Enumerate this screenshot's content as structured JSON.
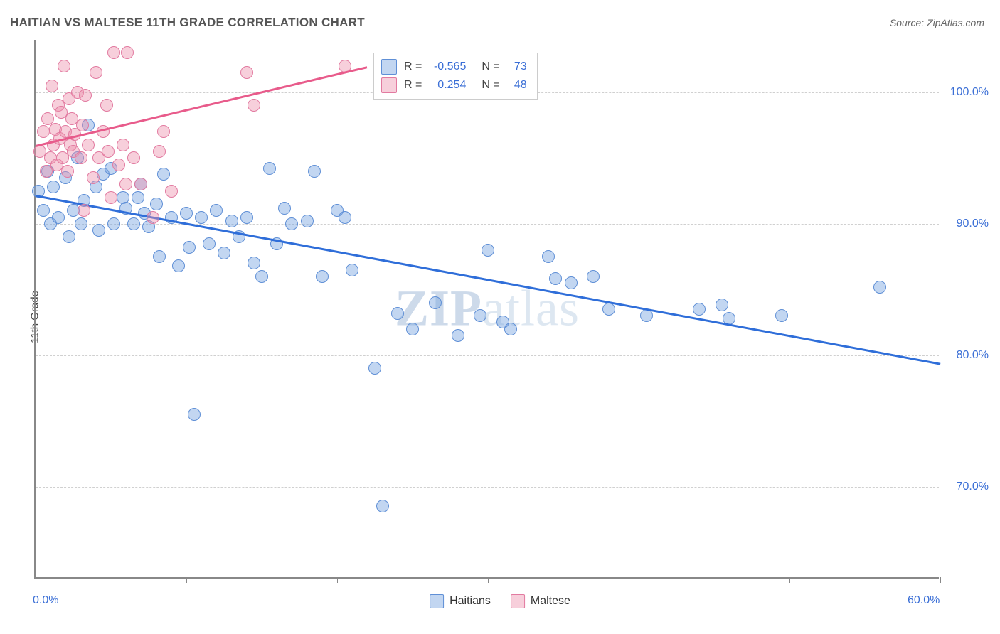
{
  "title": "HAITIAN VS MALTESE 11TH GRADE CORRELATION CHART",
  "source": "Source: ZipAtlas.com",
  "ylabel": "11th Grade",
  "watermark_pre": "ZIP",
  "watermark_post": "atlas",
  "chart": {
    "type": "scatter",
    "xlim": [
      0,
      60
    ],
    "ylim": [
      63,
      104
    ],
    "x_ticks": [
      0,
      10,
      20,
      30,
      40,
      50,
      60
    ],
    "x_tick_labels": {
      "0": "0.0%",
      "60": "60.0%"
    },
    "y_ticks": [
      70,
      80,
      90,
      100
    ],
    "y_tick_labels": [
      "70.0%",
      "80.0%",
      "90.0%",
      "100.0%"
    ],
    "grid_color": "#d0d0d0",
    "background_color": "#ffffff",
    "axis_color": "#888888",
    "label_color": "#3b6fd6",
    "point_radius": 9,
    "series": [
      {
        "name": "Haitians",
        "fill": "rgba(120,165,225,0.45)",
        "stroke": "#5f8fd6",
        "trend_color": "#2f6ed9",
        "trend": {
          "x1": 0,
          "y1": 92.2,
          "x2": 60,
          "y2": 79.4
        },
        "data": [
          [
            0.2,
            92.5
          ],
          [
            0.5,
            91.0
          ],
          [
            0.8,
            94.0
          ],
          [
            1.0,
            90.0
          ],
          [
            1.2,
            92.8
          ],
          [
            1.5,
            90.5
          ],
          [
            2.0,
            93.5
          ],
          [
            2.2,
            89.0
          ],
          [
            2.5,
            91.0
          ],
          [
            2.8,
            95.0
          ],
          [
            3.0,
            90.0
          ],
          [
            3.2,
            91.8
          ],
          [
            3.5,
            97.5
          ],
          [
            4.0,
            92.8
          ],
          [
            4.2,
            89.5
          ],
          [
            4.5,
            93.8
          ],
          [
            5.0,
            94.2
          ],
          [
            5.2,
            90.0
          ],
          [
            5.8,
            92.0
          ],
          [
            6.0,
            91.2
          ],
          [
            6.5,
            90.0
          ],
          [
            6.8,
            92.0
          ],
          [
            7.0,
            93.0
          ],
          [
            7.2,
            90.8
          ],
          [
            7.5,
            89.8
          ],
          [
            8.0,
            91.5
          ],
          [
            8.2,
            87.5
          ],
          [
            8.5,
            93.8
          ],
          [
            9.0,
            90.5
          ],
          [
            9.5,
            86.8
          ],
          [
            10.0,
            90.8
          ],
          [
            10.2,
            88.2
          ],
          [
            10.5,
            75.5
          ],
          [
            11.0,
            90.5
          ],
          [
            11.5,
            88.5
          ],
          [
            12.0,
            91.0
          ],
          [
            12.5,
            87.8
          ],
          [
            13.0,
            90.2
          ],
          [
            13.5,
            89.0
          ],
          [
            14.0,
            90.5
          ],
          [
            14.5,
            87.0
          ],
          [
            15.0,
            86.0
          ],
          [
            15.5,
            94.2
          ],
          [
            16.0,
            88.5
          ],
          [
            16.5,
            91.2
          ],
          [
            17.0,
            90.0
          ],
          [
            18.0,
            90.2
          ],
          [
            18.5,
            94.0
          ],
          [
            19.0,
            86.0
          ],
          [
            20.0,
            91.0
          ],
          [
            20.5,
            90.5
          ],
          [
            21.0,
            86.5
          ],
          [
            22.5,
            79.0
          ],
          [
            23.0,
            68.5
          ],
          [
            24.0,
            83.2
          ],
          [
            25.0,
            82.0
          ],
          [
            26.5,
            84.0
          ],
          [
            28.0,
            81.5
          ],
          [
            29.5,
            83.0
          ],
          [
            30.0,
            88.0
          ],
          [
            31.0,
            82.5
          ],
          [
            31.5,
            82.0
          ],
          [
            34.0,
            87.5
          ],
          [
            34.5,
            85.8
          ],
          [
            35.5,
            85.5
          ],
          [
            37.0,
            86.0
          ],
          [
            38.0,
            83.5
          ],
          [
            40.5,
            83.0
          ],
          [
            44.0,
            83.5
          ],
          [
            45.5,
            83.8
          ],
          [
            46.0,
            82.8
          ],
          [
            49.5,
            83.0
          ],
          [
            56.0,
            85.2
          ]
        ]
      },
      {
        "name": "Maltese",
        "fill": "rgba(235,140,170,0.42)",
        "stroke": "#e27aa0",
        "trend_color": "#e85b8b",
        "trend": {
          "x1": 0,
          "y1": 96.0,
          "x2": 22,
          "y2": 102.0
        },
        "data": [
          [
            0.3,
            95.5
          ],
          [
            0.5,
            97.0
          ],
          [
            0.7,
            94.0
          ],
          [
            0.8,
            98.0
          ],
          [
            1.0,
            95.0
          ],
          [
            1.1,
            100.5
          ],
          [
            1.2,
            96.0
          ],
          [
            1.3,
            97.2
          ],
          [
            1.4,
            94.5
          ],
          [
            1.5,
            99.0
          ],
          [
            1.6,
            96.5
          ],
          [
            1.7,
            98.5
          ],
          [
            1.8,
            95.0
          ],
          [
            1.9,
            102.0
          ],
          [
            2.0,
            97.0
          ],
          [
            2.1,
            94.0
          ],
          [
            2.2,
            99.5
          ],
          [
            2.3,
            96.0
          ],
          [
            2.4,
            98.0
          ],
          [
            2.5,
            95.5
          ],
          [
            2.6,
            96.8
          ],
          [
            2.8,
            100.0
          ],
          [
            3.0,
            95.0
          ],
          [
            3.1,
            97.5
          ],
          [
            3.2,
            91.0
          ],
          [
            3.3,
            99.8
          ],
          [
            3.5,
            96.0
          ],
          [
            3.8,
            93.5
          ],
          [
            4.0,
            101.5
          ],
          [
            4.2,
            95.0
          ],
          [
            4.5,
            97.0
          ],
          [
            4.7,
            99.0
          ],
          [
            4.8,
            95.5
          ],
          [
            5.0,
            92.0
          ],
          [
            5.2,
            103.0
          ],
          [
            5.5,
            94.5
          ],
          [
            5.8,
            96.0
          ],
          [
            6.0,
            93.0
          ],
          [
            6.1,
            103.0
          ],
          [
            6.5,
            95.0
          ],
          [
            7.0,
            93.0
          ],
          [
            7.8,
            90.5
          ],
          [
            8.2,
            95.5
          ],
          [
            8.5,
            97.0
          ],
          [
            9.0,
            92.5
          ],
          [
            14.0,
            101.5
          ],
          [
            14.5,
            99.0
          ],
          [
            20.5,
            102.0
          ]
        ]
      }
    ]
  },
  "stats": {
    "rows": [
      {
        "swatch_fill": "rgba(120,165,225,0.45)",
        "swatch_stroke": "#5f8fd6",
        "r": "-0.565",
        "n": "73"
      },
      {
        "swatch_fill": "rgba(235,140,170,0.42)",
        "swatch_stroke": "#e27aa0",
        "r": "0.254",
        "n": "48"
      }
    ],
    "r_label": "R =",
    "n_label": "N ="
  },
  "legend": [
    {
      "label": "Haitians",
      "fill": "rgba(120,165,225,0.45)",
      "stroke": "#5f8fd6"
    },
    {
      "label": "Maltese",
      "fill": "rgba(235,140,170,0.42)",
      "stroke": "#e27aa0"
    }
  ]
}
